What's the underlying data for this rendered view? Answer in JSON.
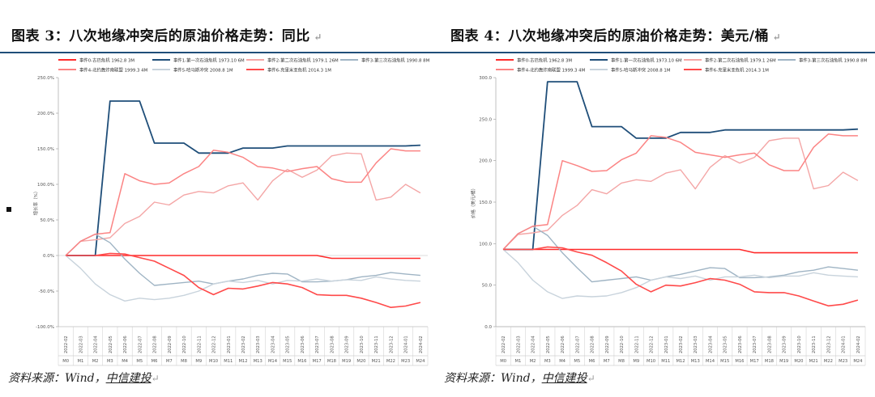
{
  "panels": [
    {
      "title": "图表 3：八次地缘冲突后的原油价格走势：同比",
      "source_prefix": "资料来源：Wind，",
      "source_org": "中信建投",
      "edit_mark": "↵"
    },
    {
      "title": "图表 4：八次地缘冲突后的原油价格走势：美元/桶",
      "source_prefix": "资料来源：Wind，",
      "source_org": "中信建投",
      "edit_mark": "↵"
    }
  ],
  "chart_data": [
    {
      "type": "line",
      "ylabel": "增长率（%）",
      "ylim": [
        -100,
        250
      ],
      "yticks": [
        -100,
        -50,
        0,
        50,
        100,
        150,
        200,
        250
      ],
      "ytick_labels": [
        "-100.0%",
        "-50.0%",
        "0.0%",
        "50.0%",
        "100.0%",
        "150.0%",
        "200.0%",
        "250.0%"
      ],
      "x_top": [
        "2022-02",
        "2022-03",
        "2022-04",
        "2022-05",
        "2022-06",
        "2022-07",
        "2022-08",
        "2022-09",
        "2022-10",
        "2022-11",
        "2022-12",
        "2023-01",
        "2023-02",
        "2023-03",
        "2023-04",
        "2023-05",
        "2023-06",
        "2023-07",
        "2023-08",
        "2023-09",
        "2023-10",
        "2023-11",
        "2023-12",
        "2024-01",
        "2024-02"
      ],
      "x_bottom": [
        "M0",
        "M1",
        "M2",
        "M3",
        "M4",
        "M5",
        "M6",
        "M7",
        "M8",
        "M9",
        "M10",
        "M11",
        "M12",
        "M13",
        "M14",
        "M15",
        "M16",
        "M17",
        "M18",
        "M19",
        "M20",
        "M21",
        "M22",
        "M23",
        "M24"
      ],
      "series": [
        {
          "name": "事件0-古巴危机 1962.8 3M",
          "color": "#ff2a2a",
          "width": 1.6,
          "values": [
            0,
            0,
            0,
            0,
            0,
            0,
            0,
            0,
            0,
            0,
            0,
            0,
            0,
            0,
            0,
            0,
            0,
            0,
            -4,
            -4,
            -4,
            -4,
            -4,
            -4,
            -4
          ]
        },
        {
          "name": "事件1-第一次石油危机 1973.10 6M",
          "color": "#1f4e79",
          "width": 1.8,
          "values": [
            0,
            0,
            0,
            217,
            217,
            217,
            158,
            158,
            158,
            144,
            144,
            144,
            151,
            151,
            151,
            154,
            154,
            154,
            154,
            154,
            154,
            154,
            154,
            154,
            155
          ]
        },
        {
          "name": "事件2-第二次石油危机 1979.1 26M",
          "color": "#f4a6a6",
          "width": 1.4,
          "values": [
            0,
            20,
            22,
            25,
            45,
            55,
            75,
            71,
            85,
            90,
            88,
            98,
            102,
            78,
            105,
            121,
            110,
            120,
            140,
            144,
            143,
            78,
            82,
            100,
            88
          ]
        },
        {
          "name": "事件3-第三次石油危机 1990.8 8M",
          "color": "#9fb4c4",
          "width": 1.4,
          "values": [
            0,
            20,
            30,
            18,
            -5,
            -25,
            -42,
            -40,
            -38,
            -36,
            -40,
            -36,
            -33,
            -28,
            -25,
            -26,
            -37,
            -37,
            -36,
            -34,
            -30,
            -28,
            -24,
            -26,
            -28
          ]
        },
        {
          "name": "事件4-北约轰炸南联盟 1999.3 4M",
          "color": "#fb8484",
          "width": 1.5,
          "values": [
            0,
            20,
            30,
            32,
            115,
            105,
            100,
            102,
            115,
            125,
            148,
            145,
            138,
            125,
            123,
            118,
            122,
            125,
            108,
            103,
            103,
            130,
            150,
            147,
            147
          ]
        },
        {
          "name": "事件5-哈马斯冲突 2008.8 1M",
          "color": "#c8d3dc",
          "width": 1.4,
          "values": [
            0,
            -18,
            -40,
            -55,
            -64,
            -60,
            -62,
            -60,
            -56,
            -50,
            -40,
            -36,
            -38,
            -35,
            -40,
            -35,
            -36,
            -33,
            -36,
            -34,
            -35,
            -30,
            -33,
            -35,
            -36
          ]
        },
        {
          "name": "事件6-克里米亚危机 2014.3 1M",
          "color": "#ff4a4a",
          "width": 1.6,
          "values": [
            0,
            0,
            0,
            3,
            2,
            -3,
            -8,
            -18,
            -28,
            -45,
            -55,
            -46,
            -47,
            -43,
            -38,
            -40,
            -45,
            -55,
            -56,
            -56,
            -60,
            -66,
            -73,
            -71,
            -66
          ]
        }
      ]
    },
    {
      "type": "line",
      "ylabel": "价格（美元/桶）",
      "ylim": [
        0,
        300
      ],
      "yticks": [
        0,
        50,
        100,
        150,
        200,
        250,
        300
      ],
      "ytick_labels": [
        "0.0",
        "50.0",
        "100.0",
        "150.0",
        "200.0",
        "250.0",
        "300.0"
      ],
      "x_top": [
        "2022-02",
        "2022-03",
        "2022-04",
        "2022-05",
        "2022-06",
        "2022-07",
        "2022-08",
        "2022-09",
        "2022-10",
        "2022-11",
        "2022-12",
        "2023-01",
        "2023-02",
        "2023-03",
        "2023-04",
        "2023-05",
        "2023-06",
        "2023-07",
        "2023-08",
        "2023-09",
        "2023-10",
        "2023-11",
        "2023-12",
        "2024-01",
        "2024-02"
      ],
      "x_bottom": [
        "M0",
        "M1",
        "M2",
        "M3",
        "M4",
        "M5",
        "M6",
        "M7",
        "M8",
        "M9",
        "M10",
        "M11",
        "M12",
        "M13",
        "M14",
        "M15",
        "M16",
        "M17",
        "M18",
        "M19",
        "M20",
        "M21",
        "M22",
        "M23",
        "M24"
      ],
      "series": [
        {
          "name": "事件0-古巴危机 1962.8 3M",
          "color": "#ff2a2a",
          "width": 1.6,
          "values": [
            93,
            93,
            93,
            93,
            93,
            93,
            93,
            93,
            93,
            93,
            93,
            93,
            93,
            93,
            93,
            93,
            93,
            89,
            89,
            89,
            89,
            89,
            89,
            89,
            89
          ]
        },
        {
          "name": "事件1-第一次石油危机 1973.10 6M",
          "color": "#1f4e79",
          "width": 1.8,
          "values": [
            93,
            93,
            93,
            295,
            295,
            295,
            241,
            241,
            241,
            227,
            227,
            227,
            234,
            234,
            234,
            237,
            237,
            237,
            237,
            237,
            237,
            237,
            237,
            237,
            238
          ]
        },
        {
          "name": "事件2-第二次石油危机 1979.1 26M",
          "color": "#f4a6a6",
          "width": 1.4,
          "values": [
            93,
            111,
            113,
            116,
            134,
            146,
            165,
            160,
            173,
            177,
            175,
            185,
            189,
            166,
            192,
            206,
            197,
            204,
            224,
            227,
            227,
            166,
            170,
            186,
            176
          ]
        },
        {
          "name": "事件3-第三次石油危机 1990.8 8M",
          "color": "#9fb4c4",
          "width": 1.4,
          "values": [
            93,
            112,
            121,
            110,
            89,
            71,
            54,
            56,
            58,
            60,
            56,
            60,
            63,
            67,
            71,
            70,
            59,
            59,
            60,
            62,
            66,
            68,
            72,
            70,
            68
          ]
        },
        {
          "name": "事件4-北约轰炸南联盟 1999.3 4M",
          "color": "#fb8484",
          "width": 1.5,
          "values": [
            93,
            112,
            121,
            123,
            200,
            194,
            187,
            188,
            201,
            209,
            230,
            228,
            222,
            210,
            207,
            204,
            207,
            209,
            195,
            188,
            188,
            216,
            232,
            230,
            230
          ]
        },
        {
          "name": "事件5-哈马斯冲突 2008.8 1M",
          "color": "#c8d3dc",
          "width": 1.4,
          "values": [
            93,
            77,
            56,
            42,
            34,
            37,
            36,
            37,
            41,
            47,
            56,
            60,
            58,
            61,
            56,
            60,
            60,
            62,
            59,
            61,
            61,
            65,
            62,
            61,
            60
          ]
        },
        {
          "name": "事件6-克里米亚危机 2014.3 1M",
          "color": "#ff4a4a",
          "width": 1.6,
          "values": [
            93,
            93,
            93,
            96,
            95,
            90,
            86,
            77,
            67,
            51,
            42,
            50,
            49,
            53,
            58,
            56,
            51,
            42,
            41,
            41,
            37,
            31,
            25,
            27,
            32
          ]
        }
      ]
    }
  ]
}
